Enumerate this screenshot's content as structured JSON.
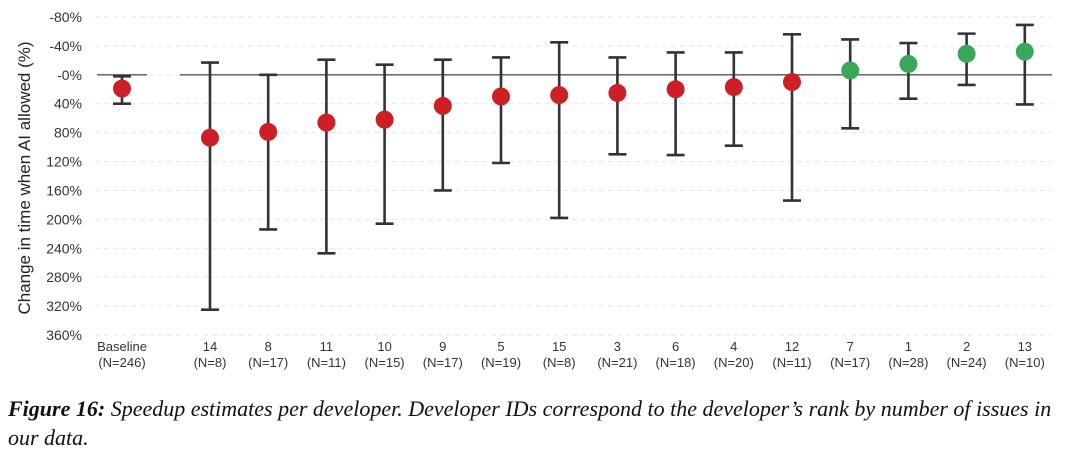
{
  "chart_data": {
    "type": "scatter",
    "ylabel": "Change in time when AI allowed (%)",
    "ylim": [
      -80,
      360
    ],
    "y_inverted": true,
    "yticks": [
      -80,
      -40,
      0,
      40,
      80,
      120,
      160,
      200,
      240,
      280,
      320,
      360
    ],
    "ytick_labels": [
      "-80%",
      "-40%",
      "-0%",
      "40%",
      "80%",
      "120%",
      "160%",
      "200%",
      "240%",
      "280%",
      "320%",
      "360%"
    ],
    "grid": "horizontal-dashed",
    "reference_line": 0,
    "colors": {
      "slowdown": "#cc1f26",
      "speedup": "#3aa85a",
      "errorbar": "#333333",
      "zero_line": "#555555",
      "grid": "#e6e6e6"
    },
    "points": [
      {
        "id": "Baseline",
        "n": "(N=246)",
        "y": 19,
        "lo": 2,
        "hi": 40,
        "color": "slowdown",
        "group": "baseline"
      },
      {
        "id": "14",
        "n": "(N=8)",
        "y": 87,
        "lo": -17,
        "hi": 325,
        "color": "slowdown"
      },
      {
        "id": "8",
        "n": "(N=17)",
        "y": 79,
        "lo": 0,
        "hi": 214,
        "color": "slowdown"
      },
      {
        "id": "11",
        "n": "(N=11)",
        "y": 66,
        "lo": -21,
        "hi": 247,
        "color": "slowdown"
      },
      {
        "id": "10",
        "n": "(N=15)",
        "y": 62,
        "lo": -14,
        "hi": 206,
        "color": "slowdown"
      },
      {
        "id": "9",
        "n": "(N=17)",
        "y": 43,
        "lo": -21,
        "hi": 160,
        "color": "slowdown"
      },
      {
        "id": "5",
        "n": "(N=19)",
        "y": 30,
        "lo": -24,
        "hi": 122,
        "color": "slowdown"
      },
      {
        "id": "15",
        "n": "(N=8)",
        "y": 28,
        "lo": -45,
        "hi": 198,
        "color": "slowdown"
      },
      {
        "id": "3",
        "n": "(N=21)",
        "y": 25,
        "lo": -24,
        "hi": 110,
        "color": "slowdown"
      },
      {
        "id": "6",
        "n": "(N=18)",
        "y": 20,
        "lo": -31,
        "hi": 111,
        "color": "slowdown"
      },
      {
        "id": "4",
        "n": "(N=20)",
        "y": 17,
        "lo": -31,
        "hi": 98,
        "color": "slowdown"
      },
      {
        "id": "12",
        "n": "(N=11)",
        "y": 10,
        "lo": -56,
        "hi": 174,
        "color": "slowdown"
      },
      {
        "id": "7",
        "n": "(N=17)",
        "y": -6,
        "lo": -49,
        "hi": 74,
        "color": "speedup"
      },
      {
        "id": "1",
        "n": "(N=28)",
        "y": -15,
        "lo": -44,
        "hi": 33,
        "color": "speedup"
      },
      {
        "id": "2",
        "n": "(N=24)",
        "y": -29,
        "lo": -57,
        "hi": 14,
        "color": "speedup"
      },
      {
        "id": "13",
        "n": "(N=10)",
        "y": -32,
        "lo": -69,
        "hi": 41,
        "color": "speedup"
      }
    ]
  },
  "caption": {
    "lead": "Figure 16:",
    "text": " Speedup estimates per developer. Developer IDs correspond to the developer’s rank by number of issues in our data."
  }
}
